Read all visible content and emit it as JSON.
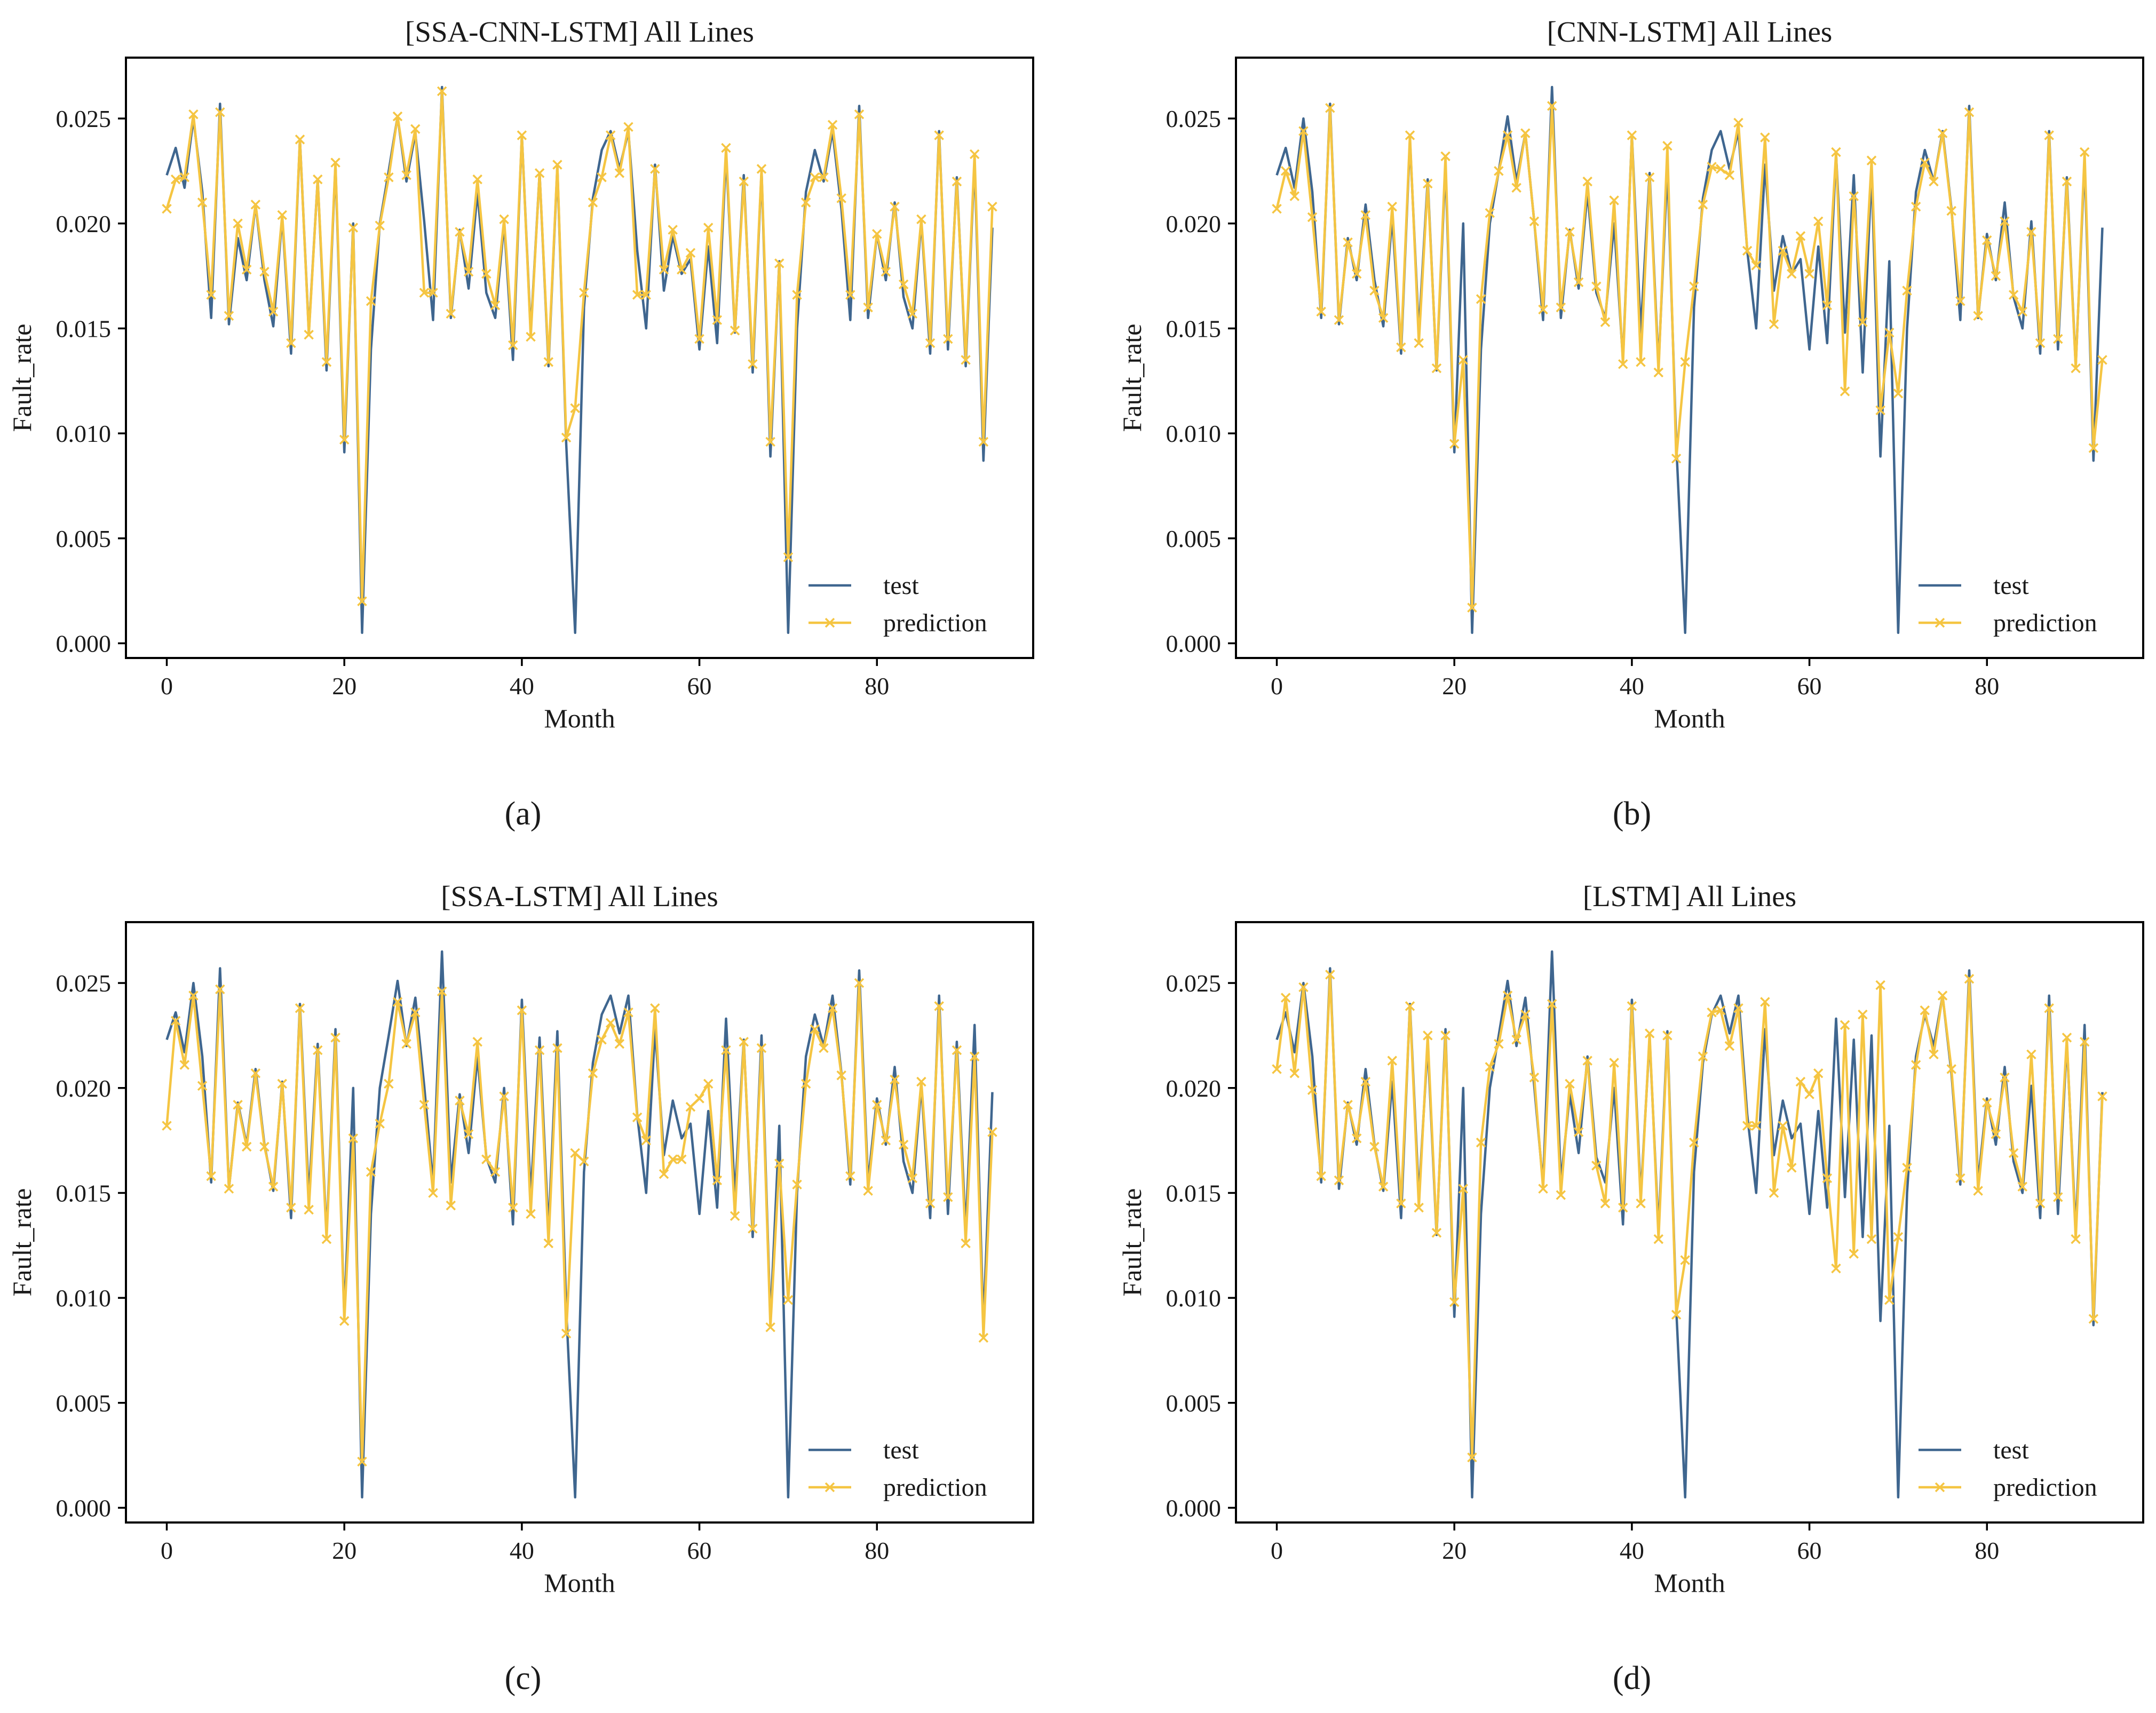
{
  "figure": {
    "colors": {
      "test": "#3f668f",
      "prediction": "#f5c542"
    },
    "captions": [
      "(a)",
      "(b)",
      "(c)",
      "(d)"
    ]
  },
  "chart_data": [
    {
      "type": "line",
      "title": "[SSA-CNN-LSTM] All Lines",
      "xlabel": "Month",
      "ylabel": "Fault_rate",
      "xlim": [
        -4.6,
        97.6
      ],
      "ylim": [
        -0.0007,
        0.0279
      ],
      "xticks": [
        0,
        20,
        40,
        60,
        80
      ],
      "yticks": [
        "0.000",
        "0.005",
        "0.010",
        "0.015",
        "0.020",
        "0.025"
      ],
      "legend": "lower-right",
      "series": [
        {
          "name": "test",
          "marker": "none",
          "values": [
            0.0223,
            0.0236,
            0.0217,
            0.025,
            0.0215,
            0.0155,
            0.0257,
            0.0152,
            0.0193,
            0.0173,
            0.0209,
            0.0173,
            0.0151,
            0.0203,
            0.0138,
            0.024,
            0.0148,
            0.0221,
            0.013,
            0.0228,
            0.0091,
            0.02,
            0.0005,
            0.014,
            0.02,
            0.0225,
            0.0251,
            0.022,
            0.0243,
            0.0201,
            0.0154,
            0.0265,
            0.0155,
            0.0197,
            0.0169,
            0.0215,
            0.0167,
            0.0155,
            0.02,
            0.0135,
            0.0242,
            0.0148,
            0.0224,
            0.0132,
            0.0227,
            0.0095,
            0.0005,
            0.016,
            0.0212,
            0.0235,
            0.0244,
            0.0226,
            0.0244,
            0.0187,
            0.015,
            0.0228,
            0.0168,
            0.0194,
            0.0176,
            0.0183,
            0.014,
            0.0189,
            0.0143,
            0.0233,
            0.0148,
            0.0223,
            0.0129,
            0.0225,
            0.0089,
            0.0182,
            0.0005,
            0.015,
            0.0215,
            0.0235,
            0.022,
            0.0244,
            0.0207,
            0.0154,
            0.0256,
            0.0155,
            0.0195,
            0.0173,
            0.021,
            0.0165,
            0.015,
            0.0201,
            0.0138,
            0.0244,
            0.014,
            0.0222,
            0.0132,
            0.023,
            0.0087,
            0.0198
          ]
        },
        {
          "name": "prediction",
          "marker": "x",
          "values": [
            0.0207,
            0.0221,
            0.0222,
            0.0252,
            0.021,
            0.0166,
            0.0253,
            0.0156,
            0.02,
            0.0178,
            0.0209,
            0.0177,
            0.0158,
            0.0204,
            0.0143,
            0.024,
            0.0147,
            0.0221,
            0.0134,
            0.0229,
            0.0097,
            0.0198,
            0.002,
            0.0163,
            0.0199,
            0.0222,
            0.0251,
            0.0223,
            0.0245,
            0.0167,
            0.0167,
            0.0263,
            0.0157,
            0.0196,
            0.0177,
            0.0221,
            0.0176,
            0.0161,
            0.0202,
            0.0142,
            0.0242,
            0.0146,
            0.0224,
            0.0134,
            0.0228,
            0.0098,
            0.0112,
            0.0167,
            0.021,
            0.0222,
            0.0242,
            0.0224,
            0.0246,
            0.0166,
            0.0166,
            0.0226,
            0.0178,
            0.0197,
            0.0178,
            0.0186,
            0.0145,
            0.0198,
            0.0154,
            0.0236,
            0.0149,
            0.022,
            0.0133,
            0.0226,
            0.0096,
            0.0181,
            0.0041,
            0.0166,
            0.021,
            0.0222,
            0.0222,
            0.0247,
            0.0212,
            0.0166,
            0.0252,
            0.016,
            0.0195,
            0.0177,
            0.0208,
            0.0171,
            0.0157,
            0.0202,
            0.0143,
            0.0242,
            0.0145,
            0.022,
            0.0135,
            0.0233,
            0.0096,
            0.0208
          ]
        }
      ]
    },
    {
      "type": "line",
      "title": "[CNN-LSTM] All Lines",
      "xlabel": "Month",
      "ylabel": "Fault_rate",
      "xlim": [
        -4.6,
        97.6
      ],
      "ylim": [
        -0.0007,
        0.0279
      ],
      "xticks": [
        0,
        20,
        40,
        60,
        80
      ],
      "yticks": [
        "0.000",
        "0.005",
        "0.010",
        "0.015",
        "0.020",
        "0.025"
      ],
      "legend": "lower-right",
      "series": [
        {
          "name": "test",
          "marker": "none",
          "values": [
            0.0223,
            0.0236,
            0.0217,
            0.025,
            0.0215,
            0.0155,
            0.0257,
            0.0152,
            0.0193,
            0.0173,
            0.0209,
            0.0173,
            0.0151,
            0.0203,
            0.0138,
            0.024,
            0.0148,
            0.0221,
            0.013,
            0.0228,
            0.0091,
            0.02,
            0.0005,
            0.014,
            0.02,
            0.0225,
            0.0251,
            0.022,
            0.0243,
            0.0201,
            0.0154,
            0.0265,
            0.0155,
            0.0197,
            0.0169,
            0.0215,
            0.0167,
            0.0155,
            0.02,
            0.0135,
            0.0242,
            0.0148,
            0.0224,
            0.0132,
            0.0227,
            0.0095,
            0.0005,
            0.016,
            0.0212,
            0.0235,
            0.0244,
            0.0226,
            0.0244,
            0.0187,
            0.015,
            0.0228,
            0.0168,
            0.0194,
            0.0176,
            0.0183,
            0.014,
            0.0189,
            0.0143,
            0.0233,
            0.0148,
            0.0223,
            0.0129,
            0.0225,
            0.0089,
            0.0182,
            0.0005,
            0.015,
            0.0215,
            0.0235,
            0.022,
            0.0244,
            0.0207,
            0.0154,
            0.0256,
            0.0155,
            0.0195,
            0.0173,
            0.021,
            0.0165,
            0.015,
            0.0201,
            0.0138,
            0.0244,
            0.014,
            0.0222,
            0.0132,
            0.023,
            0.0087,
            0.0198
          ]
        },
        {
          "name": "prediction",
          "marker": "x",
          "values": [
            0.0207,
            0.0225,
            0.0213,
            0.0244,
            0.0203,
            0.0158,
            0.0255,
            0.0154,
            0.0191,
            0.0176,
            0.0204,
            0.0168,
            0.0155,
            0.0208,
            0.0141,
            0.0242,
            0.0143,
            0.0219,
            0.0131,
            0.0232,
            0.0095,
            0.0135,
            0.0017,
            0.0164,
            0.0205,
            0.0225,
            0.0242,
            0.0217,
            0.0243,
            0.0201,
            0.0159,
            0.0256,
            0.016,
            0.0196,
            0.0172,
            0.022,
            0.017,
            0.0153,
            0.0211,
            0.0133,
            0.0242,
            0.0134,
            0.0222,
            0.0129,
            0.0237,
            0.0088,
            0.0134,
            0.017,
            0.0209,
            0.0227,
            0.0226,
            0.0223,
            0.0248,
            0.0187,
            0.018,
            0.0241,
            0.0152,
            0.0187,
            0.0176,
            0.0194,
            0.0176,
            0.0201,
            0.0161,
            0.0234,
            0.012,
            0.0213,
            0.0153,
            0.023,
            0.0111,
            0.0148,
            0.0119,
            0.0168,
            0.0208,
            0.0229,
            0.022,
            0.0243,
            0.0206,
            0.0163,
            0.0253,
            0.0156,
            0.0192,
            0.0175,
            0.0201,
            0.0166,
            0.0158,
            0.0196,
            0.0143,
            0.0242,
            0.0145,
            0.022,
            0.0131,
            0.0234,
            0.0093,
            0.0135
          ]
        }
      ]
    },
    {
      "type": "line",
      "title": "[SSA-LSTM] All Lines",
      "xlabel": "Month",
      "ylabel": "Fault_rate",
      "xlim": [
        -4.6,
        97.6
      ],
      "ylim": [
        -0.0007,
        0.0279
      ],
      "xticks": [
        0,
        20,
        40,
        60,
        80
      ],
      "yticks": [
        "0.000",
        "0.005",
        "0.010",
        "0.015",
        "0.020",
        "0.025"
      ],
      "legend": "lower-right",
      "series": [
        {
          "name": "test",
          "marker": "none",
          "values": [
            0.0223,
            0.0236,
            0.0217,
            0.025,
            0.0215,
            0.0155,
            0.0257,
            0.0152,
            0.0193,
            0.0173,
            0.0209,
            0.0173,
            0.0151,
            0.0203,
            0.0138,
            0.024,
            0.0148,
            0.0221,
            0.013,
            0.0228,
            0.0091,
            0.02,
            0.0005,
            0.014,
            0.02,
            0.0225,
            0.0251,
            0.022,
            0.0243,
            0.0201,
            0.0154,
            0.0265,
            0.0155,
            0.0197,
            0.0169,
            0.0215,
            0.0167,
            0.0155,
            0.02,
            0.0135,
            0.0242,
            0.0148,
            0.0224,
            0.0132,
            0.0227,
            0.0095,
            0.0005,
            0.016,
            0.0212,
            0.0235,
            0.0244,
            0.0226,
            0.0244,
            0.0187,
            0.015,
            0.0228,
            0.0168,
            0.0194,
            0.0176,
            0.0183,
            0.014,
            0.0189,
            0.0143,
            0.0233,
            0.0148,
            0.0223,
            0.0129,
            0.0225,
            0.0089,
            0.0182,
            0.0005,
            0.015,
            0.0215,
            0.0235,
            0.022,
            0.0244,
            0.0207,
            0.0154,
            0.0256,
            0.0155,
            0.0195,
            0.0173,
            0.021,
            0.0165,
            0.015,
            0.0201,
            0.0138,
            0.0244,
            0.014,
            0.0222,
            0.0132,
            0.023,
            0.0087,
            0.0198
          ]
        },
        {
          "name": "prediction",
          "marker": "x",
          "values": [
            0.0182,
            0.0232,
            0.0211,
            0.0244,
            0.0201,
            0.0158,
            0.0247,
            0.0152,
            0.0192,
            0.0172,
            0.0207,
            0.0172,
            0.0153,
            0.0202,
            0.0143,
            0.0238,
            0.0142,
            0.0218,
            0.0128,
            0.0224,
            0.0089,
            0.0176,
            0.0022,
            0.016,
            0.0183,
            0.0202,
            0.0241,
            0.0221,
            0.0236,
            0.0192,
            0.015,
            0.0246,
            0.0144,
            0.0194,
            0.0178,
            0.0222,
            0.0166,
            0.016,
            0.0196,
            0.0143,
            0.0237,
            0.014,
            0.0218,
            0.0126,
            0.0219,
            0.0083,
            0.0169,
            0.0165,
            0.0207,
            0.0223,
            0.0231,
            0.0221,
            0.0236,
            0.0186,
            0.0175,
            0.0238,
            0.0159,
            0.0166,
            0.0166,
            0.0191,
            0.0195,
            0.0202,
            0.0156,
            0.0218,
            0.0139,
            0.0222,
            0.0133,
            0.0219,
            0.0086,
            0.0164,
            0.0099,
            0.0154,
            0.0202,
            0.0228,
            0.0219,
            0.0238,
            0.0206,
            0.0158,
            0.025,
            0.0151,
            0.0192,
            0.0175,
            0.0204,
            0.0173,
            0.0157,
            0.0203,
            0.0145,
            0.0239,
            0.0148,
            0.0218,
            0.0126,
            0.0215,
            0.0081,
            0.0179
          ]
        }
      ]
    },
    {
      "type": "line",
      "title": "[LSTM] All Lines",
      "xlabel": "Month",
      "ylabel": "Fault_rate",
      "xlim": [
        -4.6,
        97.6
      ],
      "ylim": [
        -0.0007,
        0.0279
      ],
      "xticks": [
        0,
        20,
        40,
        60,
        80
      ],
      "yticks": [
        "0.000",
        "0.005",
        "0.010",
        "0.015",
        "0.020",
        "0.025"
      ],
      "legend": "lower-right",
      "series": [
        {
          "name": "test",
          "marker": "none",
          "values": [
            0.0223,
            0.0236,
            0.0217,
            0.025,
            0.0215,
            0.0155,
            0.0257,
            0.0152,
            0.0193,
            0.0173,
            0.0209,
            0.0173,
            0.0151,
            0.0203,
            0.0138,
            0.024,
            0.0148,
            0.0221,
            0.013,
            0.0228,
            0.0091,
            0.02,
            0.0005,
            0.014,
            0.02,
            0.0225,
            0.0251,
            0.022,
            0.0243,
            0.0201,
            0.0154,
            0.0265,
            0.0155,
            0.0197,
            0.0169,
            0.0215,
            0.0167,
            0.0155,
            0.02,
            0.0135,
            0.0242,
            0.0148,
            0.0224,
            0.0132,
            0.0227,
            0.0095,
            0.0005,
            0.016,
            0.0212,
            0.0235,
            0.0244,
            0.0226,
            0.0244,
            0.0187,
            0.015,
            0.0228,
            0.0168,
            0.0194,
            0.0176,
            0.0183,
            0.014,
            0.0189,
            0.0143,
            0.0233,
            0.0148,
            0.0223,
            0.0129,
            0.0225,
            0.0089,
            0.0182,
            0.0005,
            0.015,
            0.0215,
            0.0235,
            0.022,
            0.0244,
            0.0207,
            0.0154,
            0.0256,
            0.0155,
            0.0195,
            0.0173,
            0.021,
            0.0165,
            0.015,
            0.0201,
            0.0138,
            0.0244,
            0.014,
            0.0222,
            0.0132,
            0.023,
            0.0087,
            0.0198
          ]
        },
        {
          "name": "prediction",
          "marker": "x",
          "values": [
            0.0209,
            0.0243,
            0.0207,
            0.0248,
            0.0199,
            0.0158,
            0.0254,
            0.0156,
            0.0192,
            0.0176,
            0.0203,
            0.0172,
            0.0153,
            0.0213,
            0.0145,
            0.0239,
            0.0143,
            0.0225,
            0.0131,
            0.0225,
            0.0098,
            0.0152,
            0.0024,
            0.0174,
            0.021,
            0.0221,
            0.0244,
            0.0223,
            0.0235,
            0.0205,
            0.0152,
            0.024,
            0.0149,
            0.0202,
            0.0179,
            0.0213,
            0.0163,
            0.0145,
            0.0212,
            0.0143,
            0.0239,
            0.0145,
            0.0226,
            0.0128,
            0.0225,
            0.0092,
            0.0118,
            0.0174,
            0.0215,
            0.0236,
            0.0237,
            0.022,
            0.0238,
            0.0182,
            0.0182,
            0.0241,
            0.015,
            0.0182,
            0.0162,
            0.0203,
            0.0197,
            0.0207,
            0.0157,
            0.0114,
            0.023,
            0.0121,
            0.0235,
            0.0128,
            0.0249,
            0.0099,
            0.0129,
            0.0162,
            0.0211,
            0.0237,
            0.0216,
            0.0244,
            0.0209,
            0.0157,
            0.0252,
            0.0151,
            0.0193,
            0.0178,
            0.0205,
            0.0169,
            0.0153,
            0.0216,
            0.0145,
            0.0238,
            0.0148,
            0.0224,
            0.0128,
            0.0222,
            0.009,
            0.0196
          ]
        }
      ]
    }
  ]
}
